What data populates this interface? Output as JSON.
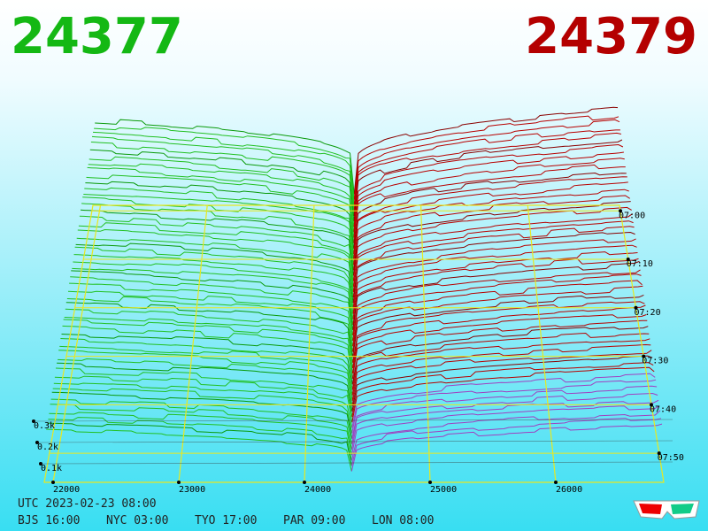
{
  "header": {
    "bid": "24377",
    "ask": "24379"
  },
  "price_axis": {
    "labels": [
      "22000",
      "23000",
      "24000",
      "25000",
      "26000"
    ]
  },
  "depth_axis": {
    "labels": [
      "0.3k",
      "0.2k",
      "0.1k"
    ]
  },
  "time_axis": {
    "labels": [
      "07:00",
      "07:10",
      "07:20",
      "07:30",
      "07:40",
      "07:50"
    ]
  },
  "footer": {
    "utc": "UTC 2023-02-23 08:00",
    "zones": [
      "BJS 16:00",
      "NYC 03:00",
      "TYO 17:00",
      "PAR 09:00",
      "LON 08:00"
    ]
  }
}
